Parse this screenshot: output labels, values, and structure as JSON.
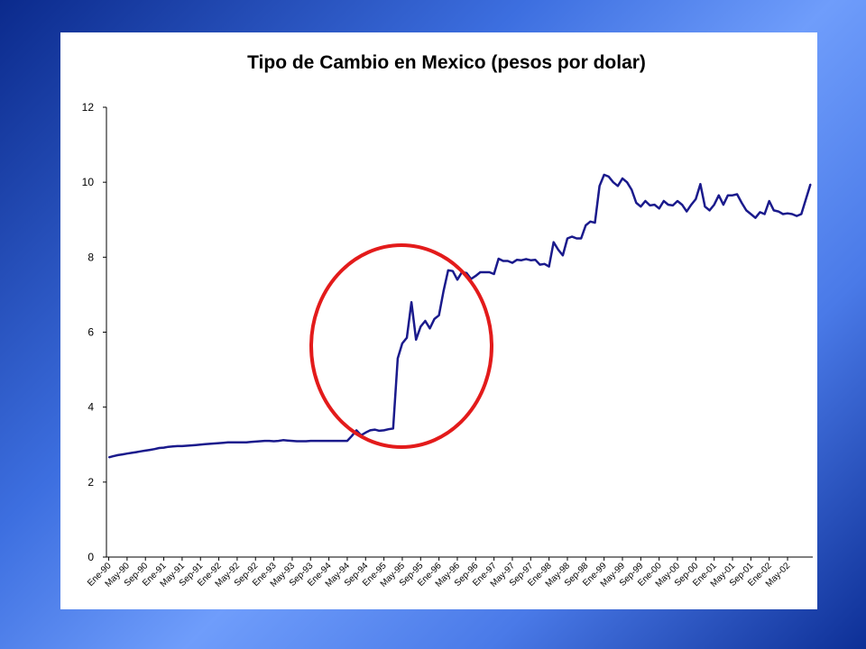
{
  "chart_data": {
    "type": "line",
    "title": "Tipo de Cambio en Mexico (pesos por dolar)",
    "xlabel": "",
    "ylabel": "",
    "ylim": [
      0,
      12
    ],
    "yticks": [
      0,
      2,
      4,
      6,
      8,
      10,
      12
    ],
    "grid": false,
    "legend": "none",
    "line_color": "#1a1a8c",
    "annotation_color": "#e31b1b",
    "x_tick_labels": [
      "Ene-90",
      "May-90",
      "Sep-90",
      "Ene-91",
      "May-91",
      "Sep-91",
      "Ene-92",
      "May-92",
      "Sep-92",
      "Ene-93",
      "May-93",
      "Sep-93",
      "Ene-94",
      "May-94",
      "Sep-94",
      "Ene-95",
      "May-95",
      "Sep-95",
      "Ene-96",
      "May-96",
      "Sep-96",
      "Ene-97",
      "May-97",
      "Sep-97",
      "Ene-98",
      "May-98",
      "Sep-98",
      "Ene-99",
      "May-99",
      "Sep-99",
      "Ene-00",
      "May-00",
      "Sep-00",
      "Ene-01",
      "May-01",
      "Sep-01",
      "Ene-02",
      "May-02"
    ],
    "series": [
      {
        "x_start": "Ene-90",
        "frequency": "monthly",
        "values": [
          2.66,
          2.69,
          2.72,
          2.74,
          2.76,
          2.78,
          2.8,
          2.82,
          2.84,
          2.86,
          2.88,
          2.91,
          2.92,
          2.94,
          2.95,
          2.96,
          2.96,
          2.97,
          2.98,
          2.99,
          3.0,
          3.01,
          3.02,
          3.03,
          3.04,
          3.05,
          3.06,
          3.06,
          3.06,
          3.06,
          3.06,
          3.07,
          3.08,
          3.09,
          3.1,
          3.1,
          3.09,
          3.1,
          3.12,
          3.11,
          3.1,
          3.09,
          3.09,
          3.09,
          3.1,
          3.1,
          3.1,
          3.1,
          3.1,
          3.1,
          3.1,
          3.1,
          3.1,
          3.23,
          3.38,
          3.25,
          3.32,
          3.38,
          3.4,
          3.37,
          3.38,
          3.41,
          3.43,
          5.3,
          5.7,
          5.85,
          6.8,
          5.8,
          6.15,
          6.3,
          6.1,
          6.35,
          6.45,
          7.1,
          7.65,
          7.63,
          7.4,
          7.6,
          7.58,
          7.42,
          7.5,
          7.6,
          7.6,
          7.6,
          7.55,
          7.96,
          7.9,
          7.9,
          7.85,
          7.93,
          7.92,
          7.95,
          7.92,
          7.93,
          7.8,
          7.82,
          7.75,
          8.4,
          8.2,
          8.05,
          8.5,
          8.55,
          8.5,
          8.5,
          8.85,
          8.95,
          8.92,
          9.9,
          10.2,
          10.15,
          10.0,
          9.9,
          10.1,
          10.0,
          9.8,
          9.45,
          9.35,
          9.5,
          9.38,
          9.4,
          9.3,
          9.5,
          9.4,
          9.38,
          9.5,
          9.4,
          9.22,
          9.4,
          9.55,
          9.95,
          9.35,
          9.25,
          9.4,
          9.65,
          9.4,
          9.65,
          9.65,
          9.68,
          9.45,
          9.25,
          9.15,
          9.05,
          9.2,
          9.15,
          9.5,
          9.25,
          9.22,
          9.15,
          9.17,
          9.15,
          9.1,
          9.15,
          9.55,
          9.95
        ]
      }
    ]
  }
}
